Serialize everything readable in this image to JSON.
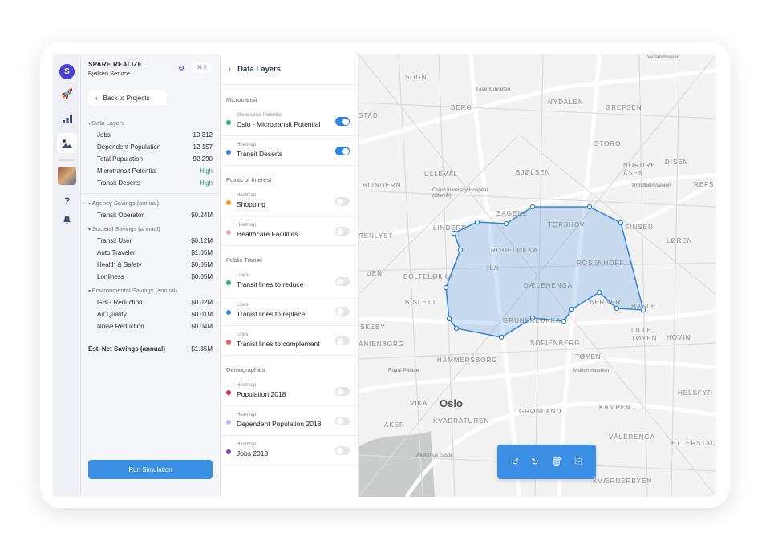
{
  "app": {
    "title": "SPARE REALIZE",
    "subtitle": "Bjølsen Service",
    "shortcut": "⌘ K",
    "logo_letter": "S"
  },
  "nav": {
    "items": [
      "logo",
      "rocket-icon",
      "chart-icon",
      "map-icon",
      "avatar",
      "help-icon",
      "bell-icon"
    ]
  },
  "summary": {
    "back_label": "Back to Projects",
    "sections": [
      {
        "title": "Data Layers",
        "rows": [
          [
            "Jobs",
            "10,312"
          ],
          [
            "Dependent Population",
            "12,157"
          ],
          [
            "Total Population",
            "92,290"
          ],
          [
            "Microtransit Potential",
            "High"
          ],
          [
            "Transit Deserts",
            "High"
          ]
        ]
      },
      {
        "title": "Agency Savings (annual)",
        "rows": [
          [
            "Transit Operator",
            "$0.24M"
          ]
        ]
      },
      {
        "title": "Societal Savings (annual)",
        "rows": [
          [
            "Transit User",
            "$0.12M"
          ],
          [
            "Auto Traveler",
            "$1.05M"
          ],
          [
            "Health & Safety",
            "$0.05M"
          ],
          [
            "Lonliness",
            "$0.05M"
          ]
        ]
      },
      {
        "title": "Environmental Savings (annual)",
        "rows": [
          [
            "GHG Reduction",
            "$0.02M"
          ],
          [
            "Air Quality",
            "$0.01M"
          ],
          [
            "Noise Reduction",
            "$0.04M"
          ]
        ]
      }
    ],
    "total_label": "Est. Net Savings (annual)",
    "total_value": "$1.35M",
    "run_label": "Run Simulation",
    "accent": "#3b8fe4",
    "positive": "#2aa572"
  },
  "layers": {
    "title": "Data Layers",
    "groups": [
      {
        "title": "Microtransit",
        "items": [
          {
            "type": "Microtransit Potential",
            "name": "Oslo - Microtransit Potential",
            "color": "#2fb07a",
            "on": true
          },
          {
            "type": "Heatmap",
            "name": "Transit Deserts",
            "color": "#2f86e0",
            "on": true
          }
        ]
      },
      {
        "title": "Points of Interest",
        "items": [
          {
            "type": "Heatmap",
            "name": "Shopping",
            "color": "#f59a0b",
            "on": false
          },
          {
            "type": "Heatmap",
            "name": "Healthcare Facilities",
            "color": "#f2a7b3",
            "on": false
          }
        ]
      },
      {
        "title": "Public Transit",
        "items": [
          {
            "type": "Lines",
            "name": "Transit lines to reduce",
            "color": "#2fb07a",
            "on": false
          },
          {
            "type": "Lines",
            "name": "Tranist lines to replace",
            "color": "#2f86e0",
            "on": false
          },
          {
            "type": "Lines",
            "name": "Tranist lines to complement",
            "color": "#f05a5a",
            "on": false
          }
        ]
      },
      {
        "title": "Demographics",
        "items": [
          {
            "type": "Heatmap",
            "name": "Population 2018",
            "color": "#e03347",
            "on": false
          },
          {
            "type": "Heatmap",
            "name": "Dependent Population 2018",
            "color": "#c0b4f0",
            "on": false
          },
          {
            "type": "Heatmap",
            "name": "Jobs 2018",
            "color": "#7a4bc0",
            "on": false
          }
        ]
      }
    ]
  },
  "map": {
    "labels": [
      "SOGN",
      "BERG",
      "NYDALEN",
      "GREFSEN",
      "STORO",
      "NORDRE ÅSEN",
      "DISEN",
      "STAD",
      "ULLEVÅL",
      "BJØLSEN",
      "BLINDERN",
      "Oslo University Hospital (Ullevål)",
      "SAGENE",
      "TORSHOV",
      "SINSEN",
      "LINDERN",
      "RENLYST",
      "LØREN",
      "UEN",
      "BOLTELØKKA",
      "ILA",
      "RODELØKKA",
      "ROSENHOFF",
      "BISLETT",
      "DÆLENENGA",
      "BERNER",
      "HASLE",
      "SKEBY",
      "GRÜNERLØKKA",
      "LILLE TØYEN",
      "HOVIN",
      "ANIENBORG",
      "SOFIENBERG",
      "TØYEN",
      "Royal Palace",
      "HAMMERSBORG",
      "Munch museum",
      "Oslo",
      "VIKA",
      "HELSFYR",
      "AKER",
      "KVADRATUREN",
      "GRØNLAND",
      "KAMPEN",
      "Akershus castle",
      "VÅLERENGA",
      "ETTERSTAD",
      "KVÆRNERBYEN",
      "Tåsentunnelen",
      "Trondheimsveien",
      "Vetlandsveien",
      "REFS"
    ],
    "polygon_color": "#2f86e0",
    "toolbar": [
      "undo-icon",
      "redo-icon",
      "trash-icon",
      "export-icon"
    ]
  }
}
